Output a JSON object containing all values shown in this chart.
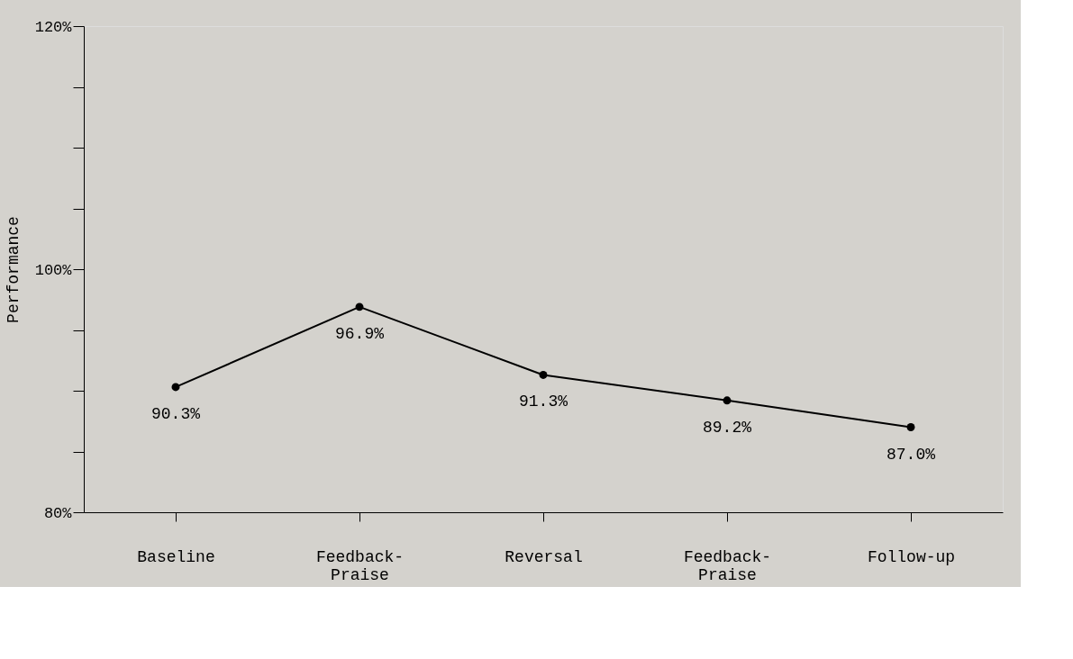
{
  "chart_data": {
    "type": "line",
    "ylabel": "Performance",
    "categories": [
      "Baseline",
      "Feedback-\nPraise",
      "Reversal",
      "Feedback-\nPraise",
      "Follow-up"
    ],
    "values": [
      90.3,
      96.9,
      91.3,
      89.2,
      87.0
    ],
    "value_labels": [
      "90.3%",
      "96.9%",
      "91.3%",
      "89.2%",
      "87.0%"
    ],
    "color": "#000000",
    "marker": "circle",
    "line_style": "solid",
    "grid": false,
    "ylim": [
      80,
      120
    ],
    "yticks": [
      {
        "value": 80,
        "label": "80%"
      },
      {
        "value": 85,
        "label": null
      },
      {
        "value": 90,
        "label": null
      },
      {
        "value": 95,
        "label": null
      },
      {
        "value": 100,
        "label": "100%"
      },
      {
        "value": 105,
        "label": null
      },
      {
        "value": 110,
        "label": null
      },
      {
        "value": 115,
        "label": null
      },
      {
        "value": 120,
        "label": "120%"
      }
    ]
  }
}
